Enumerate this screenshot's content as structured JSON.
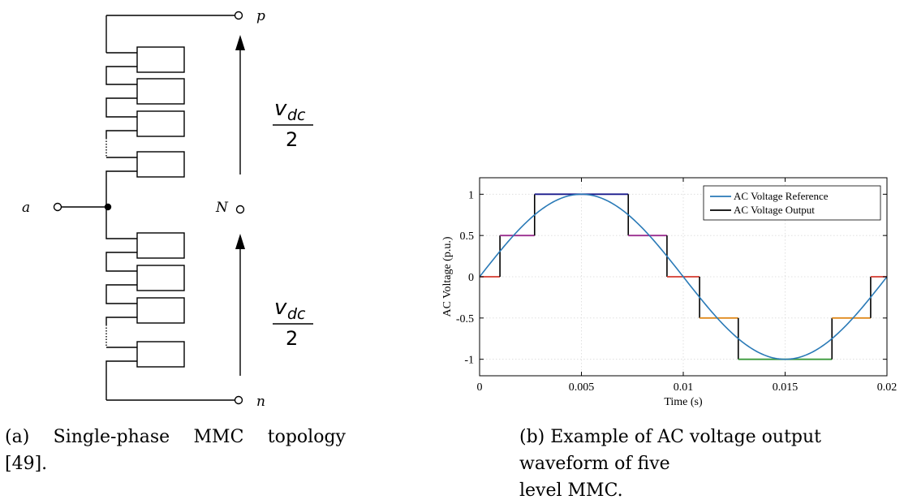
{
  "figure_a": {
    "labels": {
      "p": "p",
      "n": "n",
      "a": "a",
      "N": "N"
    },
    "upper_fraction": {
      "numerator": "v",
      "subscript": "dc",
      "denominator": "2"
    },
    "lower_fraction": {
      "numerator": "v",
      "subscript": "dc",
      "denominator": "2"
    },
    "caption": {
      "tag": "(a)",
      "words": [
        "Single-phase",
        "MMC",
        "topology"
      ],
      "line2": "[49]."
    }
  },
  "figure_b": {
    "caption": {
      "line1": "(b) Example of AC voltage output waveform of five",
      "line2": "level MMC."
    }
  },
  "chart_data": {
    "type": "line",
    "xlabel": "Time (s)",
    "ylabel": "AC Voltage (p.u.)",
    "xlim": [
      0,
      0.02
    ],
    "ylim": [
      -1.2,
      1.2
    ],
    "xticks": [
      0,
      0.005,
      0.01,
      0.015,
      0.02
    ],
    "xtick_labels": [
      "0",
      "0.005",
      "0.01",
      "0.015",
      "0.02"
    ],
    "yticks": [
      1,
      0.5,
      0,
      -0.5,
      -1
    ],
    "ytick_labels": [
      "1",
      "0.5",
      "0",
      "-0.5",
      "-1"
    ],
    "grid": true,
    "legend_position": "top-right",
    "series": [
      {
        "name": "AC Voltage Reference",
        "color": "#2a7ab7",
        "function": "sin(2*pi*50*t)",
        "x_range": [
          0,
          0.02
        ]
      },
      {
        "name": "AC Voltage Output",
        "color": "#000000",
        "steps": [
          {
            "x": [
              0,
              0.001
            ],
            "y": 0,
            "color": "#d43a2f"
          },
          {
            "x": [
              0.001,
              0.0027
            ],
            "y": 0.5,
            "color": "#9b2f8f"
          },
          {
            "x": [
              0.0027,
              0.0073
            ],
            "y": 1,
            "color": "#1a1a8c"
          },
          {
            "x": [
              0.0073,
              0.0092
            ],
            "y": 0.5,
            "color": "#9b2f8f"
          },
          {
            "x": [
              0.0092,
              0.0108
            ],
            "y": 0,
            "color": "#d43a2f"
          },
          {
            "x": [
              0.0108,
              0.0127
            ],
            "y": -0.5,
            "color": "#e08a1e"
          },
          {
            "x": [
              0.0127,
              0.0173
            ],
            "y": -1,
            "color": "#3a9a3a"
          },
          {
            "x": [
              0.0173,
              0.0192
            ],
            "y": -0.5,
            "color": "#e08a1e"
          },
          {
            "x": [
              0.0192,
              0.02
            ],
            "y": 0,
            "color": "#d43a2f"
          }
        ]
      }
    ]
  }
}
